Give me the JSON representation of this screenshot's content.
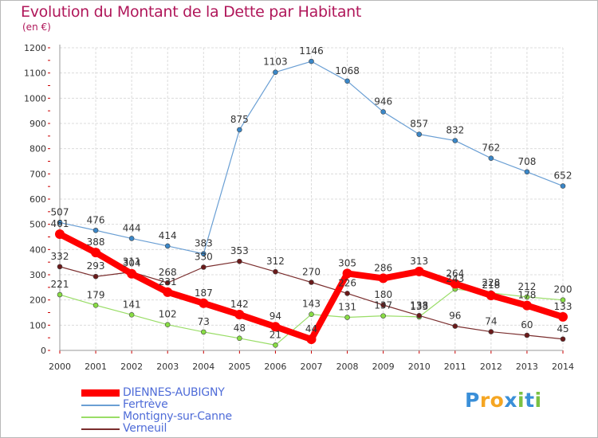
{
  "header": {
    "title": "Evolution du Montant de la Dette par Habitant",
    "subtitle": "(en €)"
  },
  "logo": {
    "text": "Proxiti"
  },
  "chart_data": {
    "type": "line",
    "title": "Evolution du Montant de la Dette par Habitant",
    "subtitle": "(en €)",
    "x": [
      "2000",
      "2001",
      "2002",
      "2003",
      "2004",
      "2005",
      "2006",
      "2007",
      "2008",
      "2009",
      "2010",
      "2011",
      "2012",
      "2013",
      "2014"
    ],
    "ylim": [
      0,
      1200
    ],
    "yticks": [
      0,
      100,
      200,
      300,
      400,
      500,
      600,
      700,
      800,
      900,
      1000,
      1100,
      1200
    ],
    "grid": true,
    "legend_position": "bottom-left",
    "series": [
      {
        "name": "DIENNES-AUBIGNY",
        "color": "#ff0000",
        "values": [
          461,
          388,
          304,
          231,
          187,
          142,
          94,
          44,
          305,
          286,
          313,
          264,
          218,
          178,
          133
        ]
      },
      {
        "name": "Fertrève",
        "color": "#6a9fd4",
        "values": [
          507,
          476,
          444,
          414,
          383,
          875,
          1103,
          1146,
          1068,
          946,
          857,
          832,
          762,
          708,
          652
        ]
      },
      {
        "name": "Montigny-sur-Canne",
        "color": "#99dd66",
        "values": [
          221,
          179,
          141,
          102,
          73,
          48,
          21,
          143,
          131,
          137,
          133,
          243,
          228,
          212,
          200
        ]
      },
      {
        "name": "Verneuil",
        "color": "#7a2d2d",
        "values": [
          332,
          293,
          311,
          268,
          330,
          353,
          312,
          270,
          226,
          180,
          138,
          96,
          74,
          60,
          45
        ]
      }
    ]
  }
}
